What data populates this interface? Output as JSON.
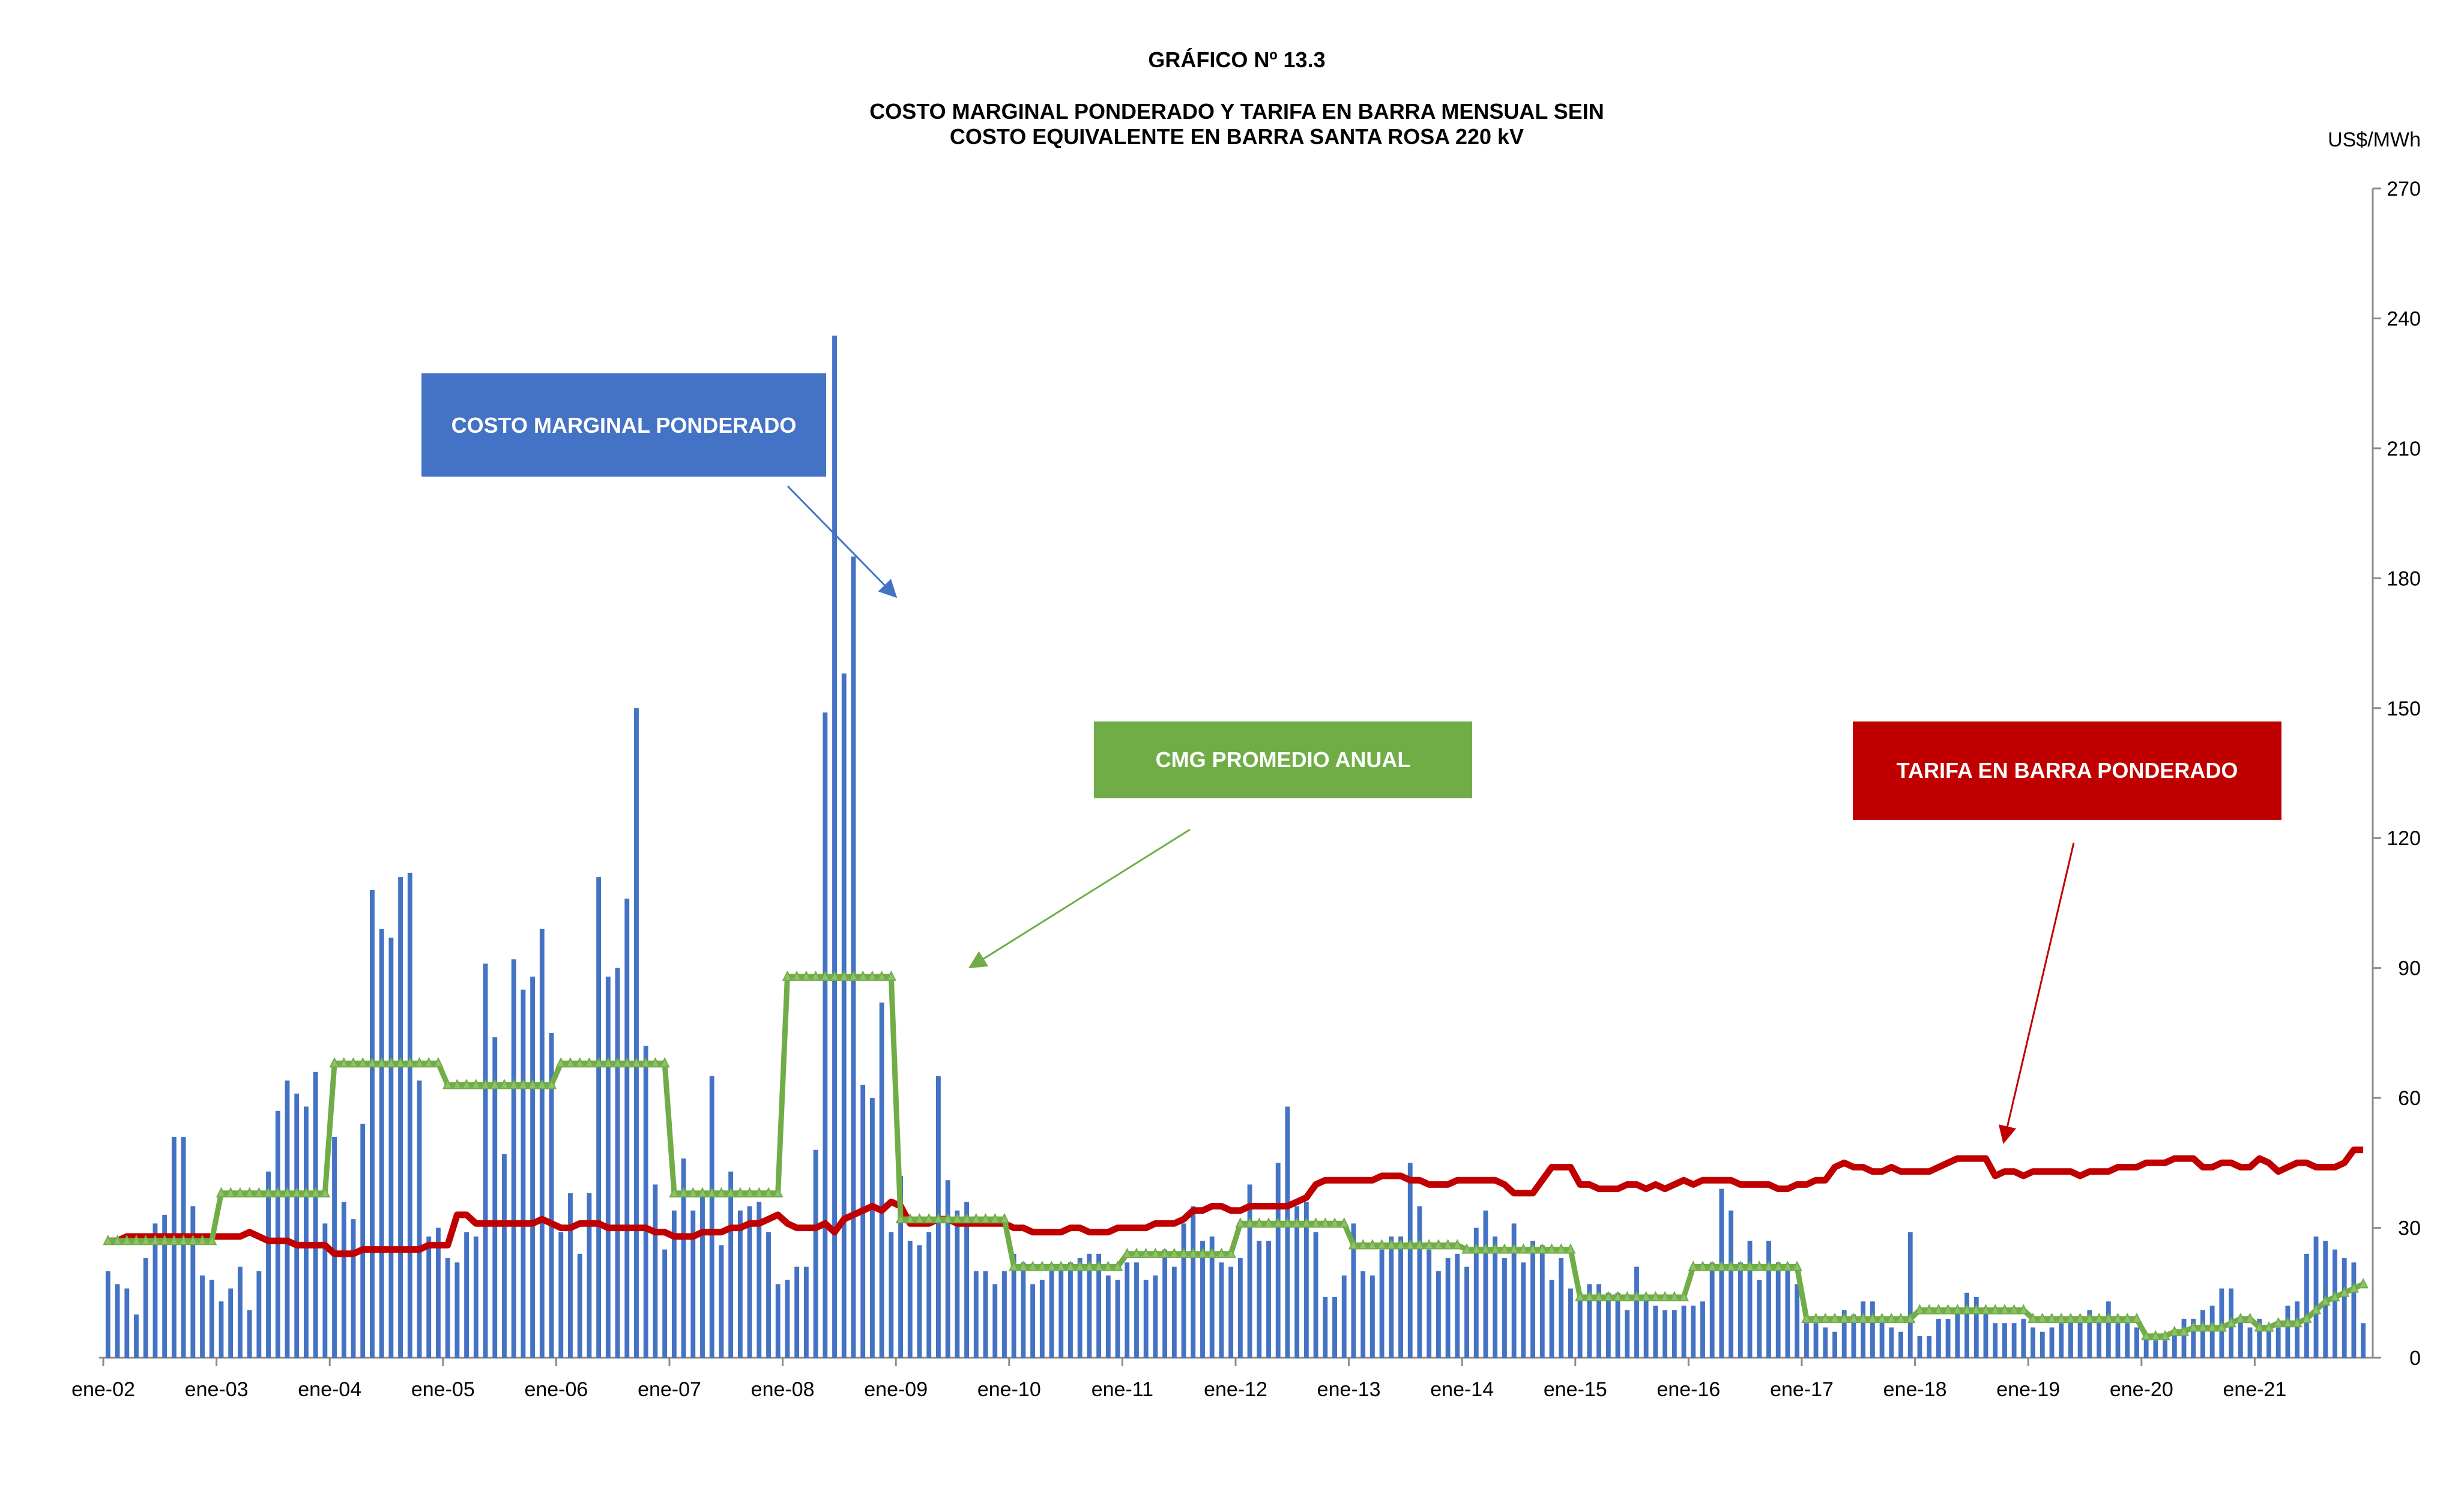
{
  "chart_data": {
    "type": "bar",
    "title": "GRÁFICO Nº 13.3",
    "subtitle_line1": "COSTO MARGINAL PONDERADO Y TARIFA EN BARRA  MENSUAL SEIN",
    "subtitle_line2": "COSTO EQUIVALENTE EN BARRA SANTA ROSA 220 kV",
    "ylabel": "US$/MWh",
    "ylim": [
      0,
      270
    ],
    "yticks": [
      0,
      30,
      60,
      90,
      120,
      150,
      180,
      210,
      240,
      270
    ],
    "x_tick_labels": [
      "ene-02",
      "ene-03",
      "ene-04",
      "ene-05",
      "ene-06",
      "ene-07",
      "ene-08",
      "ene-09",
      "ene-10",
      "ene-11",
      "ene-12",
      "ene-13",
      "ene-14",
      "ene-15",
      "ene-16",
      "ene-17",
      "ene-18",
      "ene-19",
      "ene-20",
      "ene-21"
    ],
    "start_month": "ene-02",
    "legend_position": "in-chart labeled boxes with arrows",
    "colors": {
      "bars": "#4472C4",
      "tarifa": "#C00000",
      "cmg_anual": "#70AD47"
    },
    "series": [
      {
        "name": "COSTO MARGINAL PONDERADO",
        "kind": "bar",
        "values": [
          20,
          17,
          16,
          10,
          23,
          31,
          33,
          51,
          51,
          35,
          19,
          18,
          13,
          16,
          21,
          11,
          20,
          43,
          57,
          64,
          61,
          58,
          66,
          31,
          51,
          36,
          32,
          54,
          108,
          99,
          97,
          111,
          112,
          64,
          28,
          30,
          23,
          22,
          29,
          28,
          91,
          74,
          47,
          92,
          85,
          88,
          99,
          75,
          29,
          38,
          24,
          38,
          111,
          88,
          90,
          106,
          150,
          72,
          40,
          25,
          34,
          46,
          34,
          38,
          65,
          26,
          43,
          34,
          35,
          36,
          29,
          17,
          18,
          21,
          21,
          48,
          149,
          236,
          158,
          185,
          63,
          60,
          82,
          29,
          42,
          27,
          26,
          29,
          65,
          41,
          34,
          36,
          20,
          20,
          17,
          20,
          24,
          22,
          17,
          18,
          20,
          21,
          22,
          23,
          24,
          24,
          19,
          18,
          22,
          22,
          18,
          19,
          25,
          21,
          31,
          35,
          27,
          28,
          22,
          21,
          23,
          40,
          27,
          27,
          45,
          58,
          35,
          36,
          29,
          14,
          14,
          19,
          31,
          20,
          19,
          25,
          28,
          28,
          45,
          35,
          25,
          20,
          23,
          24,
          21,
          30,
          34,
          28,
          23,
          31,
          22,
          27,
          26,
          18,
          23,
          16,
          15,
          17,
          17,
          15,
          15,
          11,
          21,
          14,
          12,
          11,
          11,
          12,
          12,
          13,
          22,
          39,
          34,
          22,
          27,
          18,
          27,
          22,
          21,
          17,
          8,
          8,
          7,
          6,
          11,
          10,
          13,
          13,
          9,
          7,
          6,
          29,
          5,
          5,
          9,
          9,
          11,
          15,
          14,
          11,
          8,
          8,
          8,
          9,
          7,
          6,
          7,
          8,
          9,
          9,
          11,
          9,
          13,
          8,
          8,
          7,
          5,
          4,
          4,
          6,
          9,
          9,
          11,
          12,
          16,
          16,
          9,
          7,
          9,
          7,
          7,
          12,
          13,
          24,
          28,
          27,
          25,
          23,
          22,
          8
        ]
      },
      {
        "name": "TARIFA EN BARRA PONDERADO",
        "kind": "line",
        "values": [
          27,
          27,
          28,
          28,
          28,
          28,
          28,
          28,
          28,
          28,
          28,
          28,
          28,
          28,
          28,
          29,
          28,
          27,
          27,
          27,
          26,
          26,
          26,
          26,
          24,
          24,
          24,
          25,
          25,
          25,
          25,
          25,
          25,
          25,
          26,
          26,
          26,
          33,
          33,
          31,
          31,
          31,
          31,
          31,
          31,
          31,
          32,
          31,
          30,
          30,
          31,
          31,
          31,
          30,
          30,
          30,
          30,
          30,
          29,
          29,
          28,
          28,
          28,
          29,
          29,
          29,
          30,
          30,
          31,
          31,
          32,
          33,
          31,
          30,
          30,
          30,
          31,
          29,
          32,
          33,
          34,
          35,
          34,
          36,
          35,
          31,
          31,
          31,
          32,
          32,
          31,
          31,
          31,
          31,
          31,
          31,
          30,
          30,
          29,
          29,
          29,
          29,
          30,
          30,
          29,
          29,
          29,
          30,
          30,
          30,
          30,
          31,
          31,
          31,
          32,
          34,
          34,
          35,
          35,
          34,
          34,
          35,
          35,
          35,
          35,
          35,
          36,
          37,
          40,
          41,
          41,
          41,
          41,
          41,
          41,
          42,
          42,
          42,
          41,
          41,
          40,
          40,
          40,
          41,
          41,
          41,
          41,
          41,
          40,
          38,
          38,
          38,
          41,
          44,
          44,
          44,
          40,
          40,
          39,
          39,
          39,
          40,
          40,
          39,
          40,
          39,
          40,
          41,
          40,
          41,
          41,
          41,
          41,
          40,
          40,
          40,
          40,
          39,
          39,
          40,
          40,
          41,
          41,
          44,
          45,
          44,
          44,
          43,
          43,
          44,
          43,
          43,
          43,
          43,
          44,
          45,
          46,
          46,
          46,
          46,
          42,
          43,
          43,
          42,
          43,
          43,
          43,
          43,
          43,
          42,
          43,
          43,
          43,
          44,
          44,
          44,
          45,
          45,
          45,
          46,
          46,
          46,
          44,
          44,
          45,
          45,
          44,
          44,
          46,
          45,
          43,
          44,
          45,
          45,
          44,
          44,
          44,
          45,
          48,
          48
        ]
      },
      {
        "name": "CMG PROMEDIO ANUAL",
        "kind": "step",
        "values": [
          27,
          27,
          27,
          27,
          27,
          27,
          27,
          27,
          27,
          27,
          27,
          27,
          38,
          38,
          38,
          38,
          38,
          38,
          38,
          38,
          38,
          38,
          38,
          38,
          68,
          68,
          68,
          68,
          68,
          68,
          68,
          68,
          68,
          68,
          68,
          68,
          63,
          63,
          63,
          63,
          63,
          63,
          63,
          63,
          63,
          63,
          63,
          63,
          68,
          68,
          68,
          68,
          68,
          68,
          68,
          68,
          68,
          68,
          68,
          68,
          38,
          38,
          38,
          38,
          38,
          38,
          38,
          38,
          38,
          38,
          38,
          38,
          88,
          88,
          88,
          88,
          88,
          88,
          88,
          88,
          88,
          88,
          88,
          88,
          32,
          32,
          32,
          32,
          32,
          32,
          32,
          32,
          32,
          32,
          32,
          32,
          21,
          21,
          21,
          21,
          21,
          21,
          21,
          21,
          21,
          21,
          21,
          21,
          24,
          24,
          24,
          24,
          24,
          24,
          24,
          24,
          24,
          24,
          24,
          24,
          31,
          31,
          31,
          31,
          31,
          31,
          31,
          31,
          31,
          31,
          31,
          31,
          26,
          26,
          26,
          26,
          26,
          26,
          26,
          26,
          26,
          26,
          26,
          26,
          25,
          25,
          25,
          25,
          25,
          25,
          25,
          25,
          25,
          25,
          25,
          25,
          14,
          14,
          14,
          14,
          14,
          14,
          14,
          14,
          14,
          14,
          14,
          14,
          21,
          21,
          21,
          21,
          21,
          21,
          21,
          21,
          21,
          21,
          21,
          21,
          9,
          9,
          9,
          9,
          9,
          9,
          9,
          9,
          9,
          9,
          9,
          9,
          11,
          11,
          11,
          11,
          11,
          11,
          11,
          11,
          11,
          11,
          11,
          11,
          9,
          9,
          9,
          9,
          9,
          9,
          9,
          9,
          9,
          9,
          9,
          9,
          5,
          5,
          5,
          6,
          6,
          7,
          7,
          7,
          7,
          8,
          9,
          9,
          7,
          7,
          8,
          8,
          8,
          9,
          11,
          13,
          14,
          15,
          16,
          17
        ]
      }
    ]
  },
  "labels": {
    "cmg_ponderado": "COSTO MARGINAL PONDERADO",
    "cmg_anual": "CMG PROMEDIO ANUAL",
    "tarifa": "TARIFA EN BARRA PONDERADO"
  }
}
